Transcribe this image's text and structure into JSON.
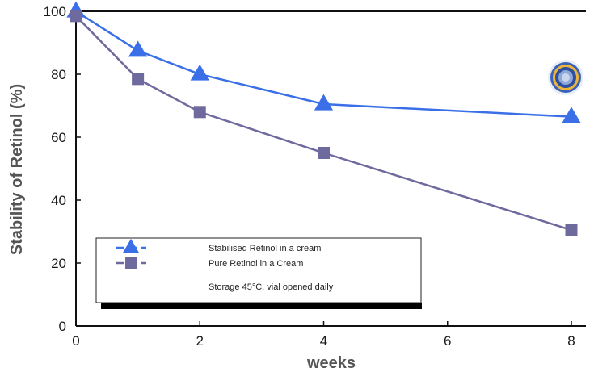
{
  "chart_data": {
    "type": "line",
    "title": "",
    "xlabel": "weeks",
    "ylabel": "Stability of Retinol (%)",
    "xlim": [
      0,
      8
    ],
    "ylim": [
      0,
      100
    ],
    "x_ticks": [
      "0",
      "2",
      "4",
      "6",
      "8"
    ],
    "y_ticks": [
      "0",
      "20",
      "40",
      "60",
      "80",
      "100"
    ],
    "grid": false,
    "legend_placement": "bottom-left",
    "series": [
      {
        "name": "Stabilised Retinol in a cream",
        "marker": "triangle",
        "color": "#3b6fe8",
        "x": [
          0,
          1,
          2,
          4,
          8
        ],
        "values": [
          100,
          87.5,
          80,
          70.5,
          66.5
        ]
      },
      {
        "name": "Pure Retinol in a Cream",
        "marker": "square",
        "color": "#6e6a9e",
        "x": [
          0,
          1,
          2,
          4,
          8
        ],
        "values": [
          98.5,
          78.5,
          68,
          55,
          30.5
        ]
      }
    ],
    "annotation": "Storage 45°C, vial opened daily",
    "decoration": "liposome-icon"
  }
}
